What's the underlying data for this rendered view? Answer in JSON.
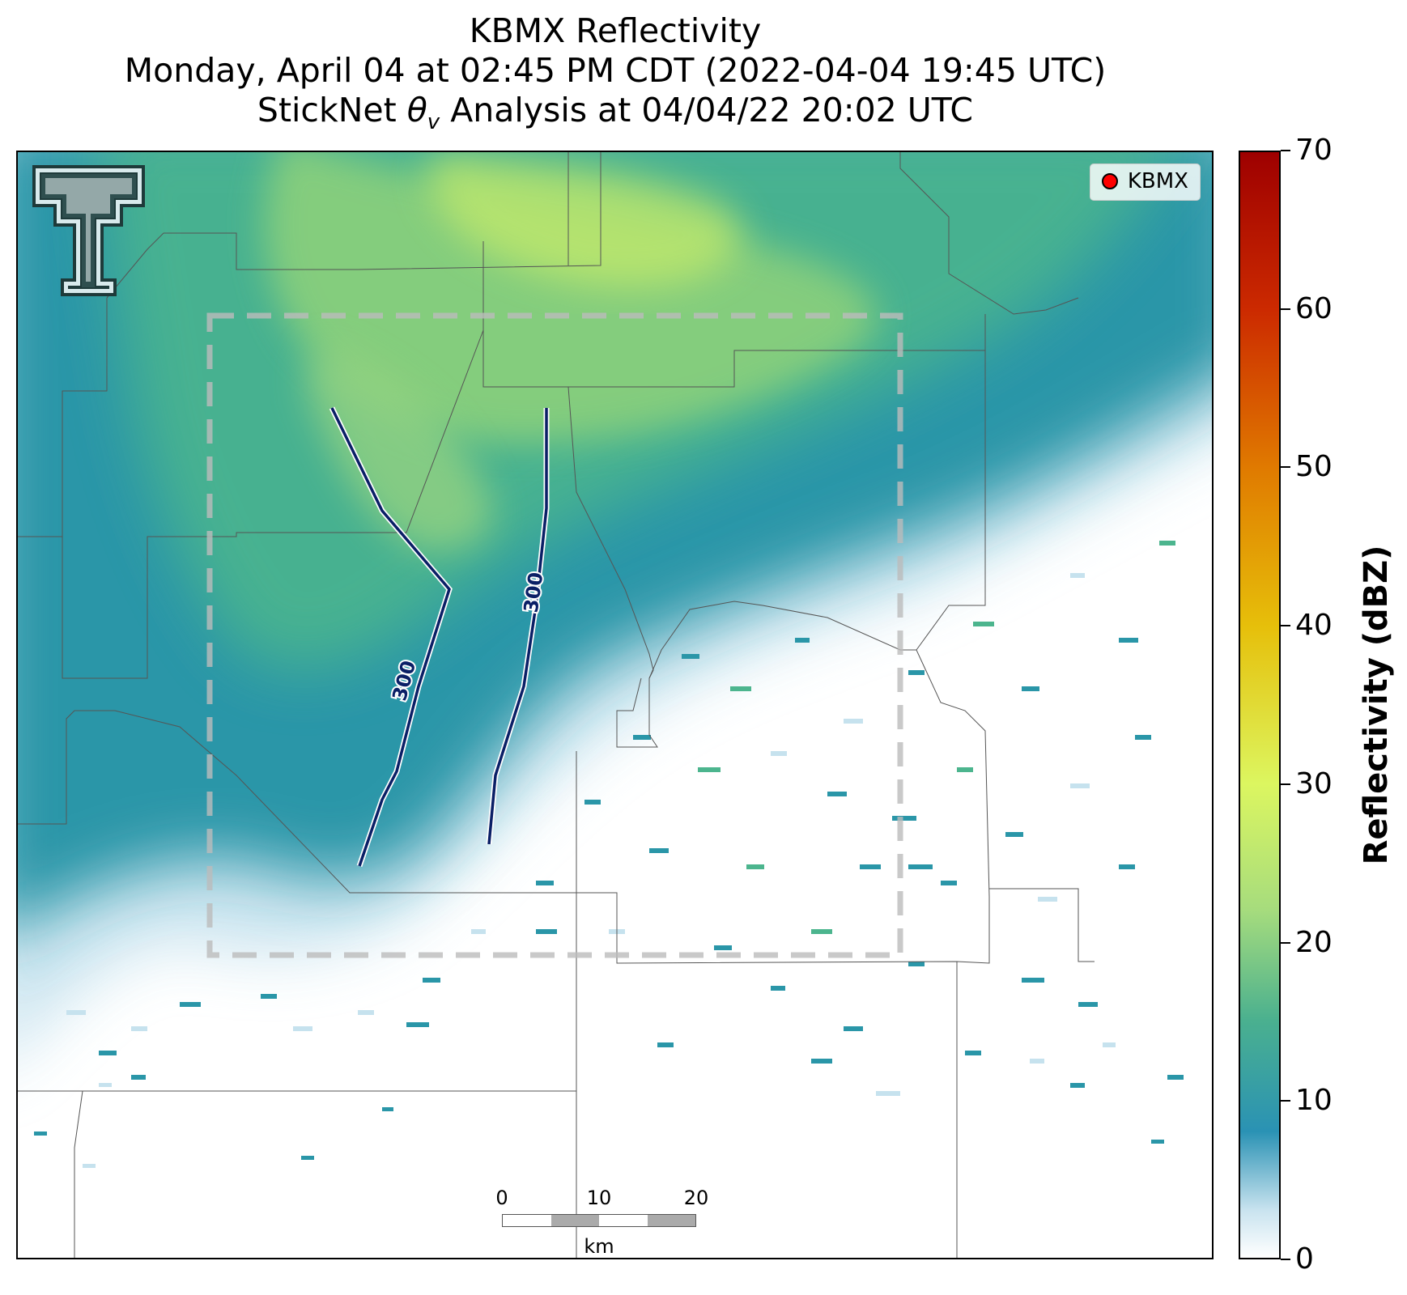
{
  "title": {
    "line1": "KBMX Reflectivity",
    "line2": "Monday, April 04 at 02:45 PM CDT (2022-04-04 19:45 UTC)",
    "line3": "StickNet θv Analysis at 04/04/22 20:02 UTC"
  },
  "legend": {
    "label": "KBMX",
    "marker_color": "#ff0000"
  },
  "logo": {
    "icon": "texas-tech-double-t-logo"
  },
  "contours": [
    {
      "value": 300,
      "label": "300",
      "color": "#0a1f66"
    },
    {
      "value": 300,
      "label": "300",
      "color": "#0a1f66"
    }
  ],
  "analysis_domain": {
    "style": "dashed",
    "color": "#bbbbbb"
  },
  "scale_bar": {
    "ticks": [
      "0",
      "10",
      "20"
    ],
    "unit": "km",
    "segment_colors": [
      "#ffffff",
      "#aaaaaa",
      "#ffffff",
      "#aaaaaa"
    ]
  },
  "colorbar": {
    "label": "Reflectivity (dBZ)",
    "min": 0,
    "max": 70,
    "ticks": [
      0,
      10,
      20,
      30,
      40,
      50,
      60,
      70
    ],
    "stops": [
      {
        "value": 0,
        "color": "#ffffff"
      },
      {
        "value": 3,
        "color": "#c9e3ef"
      },
      {
        "value": 8,
        "color": "#2a92b4"
      },
      {
        "value": 15,
        "color": "#4ab08f"
      },
      {
        "value": 22,
        "color": "#a6dc7d"
      },
      {
        "value": 30,
        "color": "#dcf660"
      },
      {
        "value": 40,
        "color": "#e6bf0a"
      },
      {
        "value": 50,
        "color": "#e07a00"
      },
      {
        "value": 60,
        "color": "#cc2a00"
      },
      {
        "value": 70,
        "color": "#9e0000"
      }
    ]
  },
  "echo_colors": {
    "light": "#c6e2ee",
    "teal": "#2a96a8",
    "green": "#4cb58e",
    "light_green": "#8fd27a",
    "yellow_green": "#c4ea6a"
  }
}
